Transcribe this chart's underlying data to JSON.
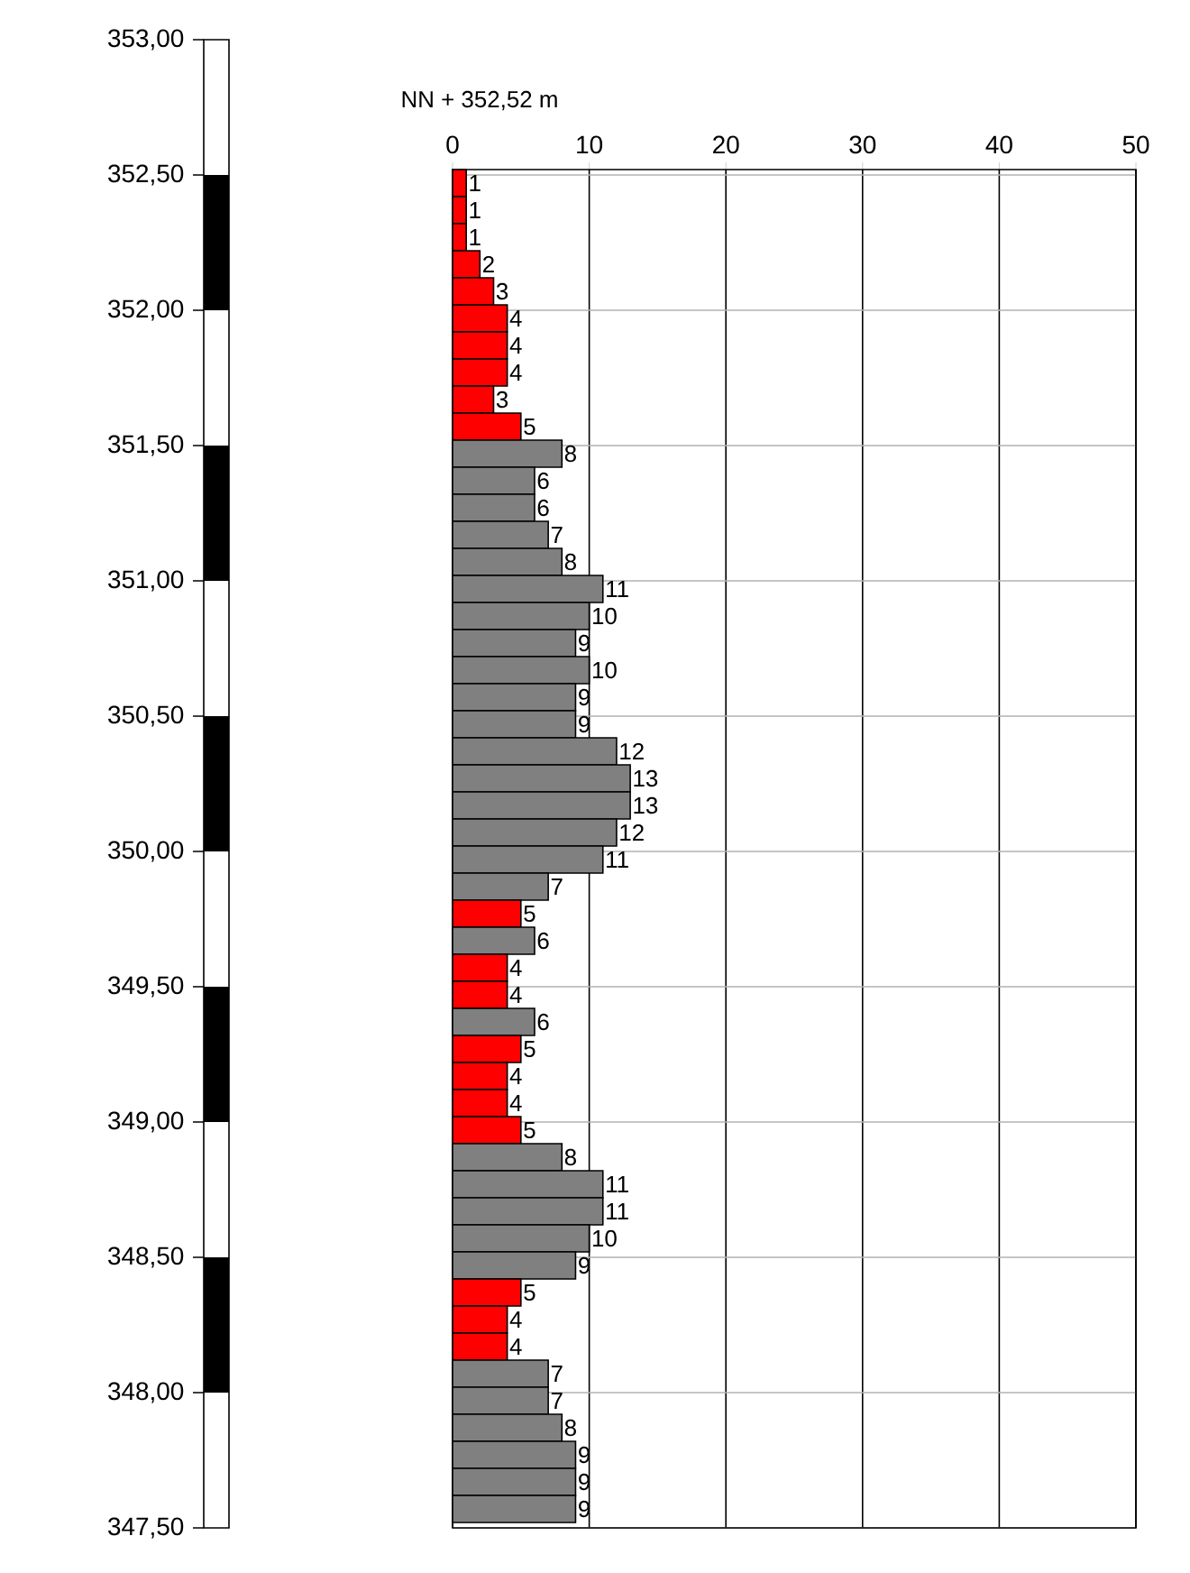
{
  "chart_data": {
    "type": "bar",
    "orientation": "horizontal",
    "x": [
      352.47,
      352.37,
      352.27,
      352.17,
      352.07,
      351.97,
      351.87,
      351.77,
      351.67,
      351.57,
      351.47,
      351.37,
      351.27,
      351.17,
      351.07,
      350.97,
      350.87,
      350.77,
      350.67,
      350.57,
      350.47,
      350.37,
      350.27,
      350.17,
      350.07,
      349.97,
      349.87,
      349.77,
      349.67,
      349.57,
      349.47,
      349.37,
      349.27,
      349.17,
      349.07,
      348.97,
      348.87,
      348.77,
      348.67,
      348.57,
      348.47,
      348.37,
      348.27,
      348.17,
      348.07,
      347.97,
      347.87,
      347.77,
      347.67,
      347.57
    ],
    "values": [
      1,
      1,
      1,
      2,
      3,
      4,
      4,
      4,
      3,
      5,
      8,
      6,
      6,
      7,
      8,
      11,
      10,
      9,
      10,
      9,
      9,
      12,
      13,
      13,
      12,
      11,
      7,
      5,
      6,
      4,
      4,
      6,
      5,
      4,
      4,
      5,
      8,
      11,
      11,
      10,
      9,
      5,
      4,
      4,
      7,
      7,
      8,
      9,
      9,
      9
    ],
    "colors": [
      "#ff0000",
      "#ff0000",
      "#ff0000",
      "#ff0000",
      "#ff0000",
      "#ff0000",
      "#ff0000",
      "#ff0000",
      "#ff0000",
      "#ff0000",
      "#808080",
      "#808080",
      "#808080",
      "#808080",
      "#808080",
      "#808080",
      "#808080",
      "#808080",
      "#808080",
      "#808080",
      "#808080",
      "#808080",
      "#808080",
      "#808080",
      "#808080",
      "#808080",
      "#808080",
      "#ff0000",
      "#808080",
      "#ff0000",
      "#ff0000",
      "#808080",
      "#ff0000",
      "#ff0000",
      "#ff0000",
      "#ff0000",
      "#808080",
      "#808080",
      "#808080",
      "#808080",
      "#808080",
      "#ff0000",
      "#ff0000",
      "#ff0000",
      "#808080",
      "#808080",
      "#808080",
      "#808080",
      "#808080",
      "#808080"
    ],
    "data_labels": true,
    "x2lim": [
      0,
      50
    ],
    "x2ticks": [
      {
        "value": 0,
        "label": "0"
      },
      {
        "value": 10,
        "label": "10"
      },
      {
        "value": 20,
        "label": "20"
      },
      {
        "value": 30,
        "label": "30"
      },
      {
        "value": 40,
        "label": "40"
      },
      {
        "value": 50,
        "label": "50"
      }
    ],
    "ylim": [
      347.5,
      353.0
    ],
    "yticks": [
      {
        "value": 353.0,
        "label": "353,00"
      },
      {
        "value": 352.5,
        "label": "352,50"
      },
      {
        "value": 352.0,
        "label": "352,00"
      },
      {
        "value": 351.5,
        "label": "351,50"
      },
      {
        "value": 351.0,
        "label": "351,00"
      },
      {
        "value": 350.5,
        "label": "350,50"
      },
      {
        "value": 350.0,
        "label": "350,00"
      },
      {
        "value": 349.5,
        "label": "349,50"
      },
      {
        "value": 349.0,
        "label": "349,00"
      },
      {
        "value": 348.5,
        "label": "348,50"
      },
      {
        "value": 348.0,
        "label": "348,00"
      },
      {
        "value": 347.5,
        "label": "347,50"
      }
    ],
    "grid": true,
    "annotations": [
      "NN + 352,52 m"
    ]
  }
}
